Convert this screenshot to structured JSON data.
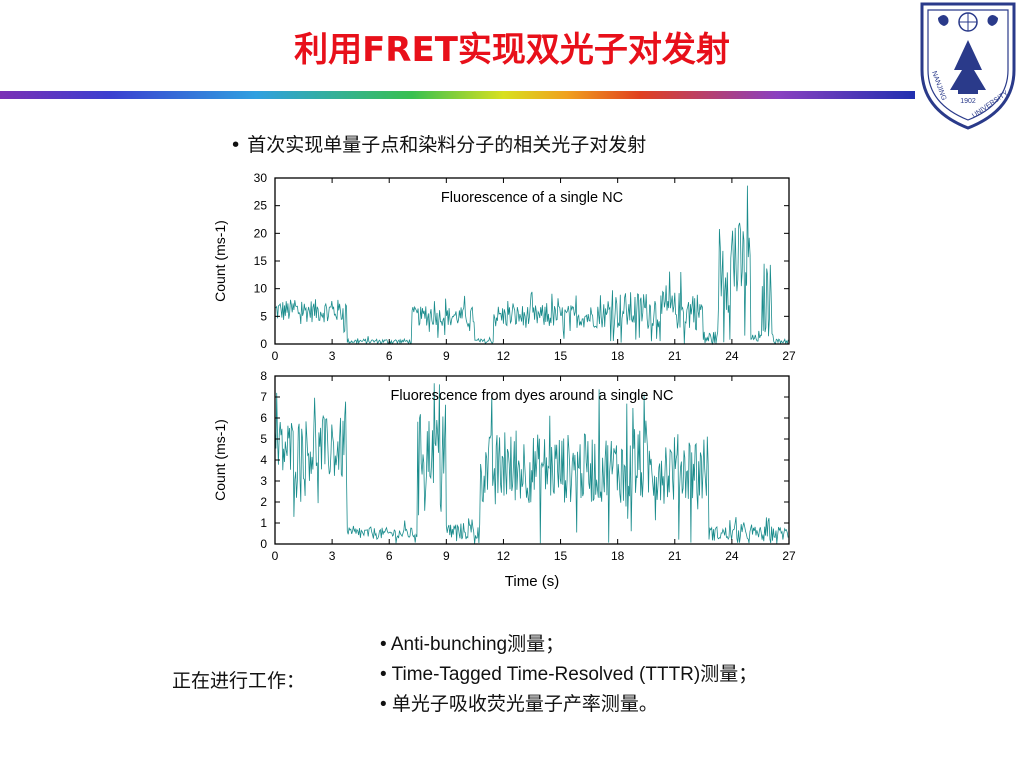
{
  "header": {
    "title": "利用FRET实现双光子对发射"
  },
  "logo": {
    "text_top": "NANJING",
    "text_bottom": "UNIVERSITY",
    "year": "1902"
  },
  "subtitle": "• 首次实现单量子点和染料分子的相关光子对发射",
  "chart_data": [
    {
      "type": "line",
      "title": "Fluorescence of a single NC",
      "ylabel": "Count (ms-1)",
      "xlabel": "",
      "xlim": [
        0,
        27
      ],
      "ylim": [
        0,
        30
      ],
      "xticks": [
        "0",
        "3",
        "6",
        "9",
        "12",
        "15",
        "18",
        "21",
        "24",
        "27"
      ],
      "yticks": [
        "0",
        "5",
        "10",
        "15",
        "20",
        "25",
        "30"
      ],
      "color": "#1a8c8c",
      "segments": [
        {
          "x": [
            0,
            3.8
          ],
          "level": 6,
          "noise": 3
        },
        {
          "x": [
            3.8,
            7.2
          ],
          "level": 0.5,
          "noise": 0.6
        },
        {
          "x": [
            7.2,
            10.5
          ],
          "level": 5,
          "noise": 2.5
        },
        {
          "x": [
            10.5,
            11.5
          ],
          "level": 0.5,
          "noise": 0.6
        },
        {
          "x": [
            11.5,
            17.5
          ],
          "level": 5,
          "noise": 3
        },
        {
          "x": [
            17.5,
            22.5
          ],
          "level": 6,
          "noise": 5
        },
        {
          "x": [
            22.5,
            23.3
          ],
          "level": 1,
          "noise": 2
        },
        {
          "x": [
            23.3,
            25.0
          ],
          "level": 14,
          "noise": 12
        },
        {
          "x": [
            25.0,
            25.6
          ],
          "level": 1,
          "noise": 1
        },
        {
          "x": [
            25.6,
            26.2
          ],
          "level": 8,
          "noise": 10
        },
        {
          "x": [
            26.2,
            27
          ],
          "level": 0.5,
          "noise": 0.6
        }
      ]
    },
    {
      "type": "line",
      "title": "Fluorescence from dyes around a single NC",
      "ylabel": "Count (ms-1)",
      "xlabel": "Time (s)",
      "xlim": [
        0,
        27
      ],
      "ylim": [
        0,
        8
      ],
      "xticks": [
        "0",
        "3",
        "6",
        "9",
        "12",
        "15",
        "18",
        "21",
        "24",
        "27"
      ],
      "yticks": [
        "0",
        "1",
        "2",
        "3",
        "4",
        "5",
        "6",
        "7",
        "8"
      ],
      "color": "#1a8c8c",
      "segments": [
        {
          "x": [
            0,
            3.8
          ],
          "level": 4.5,
          "noise": 2.2
        },
        {
          "x": [
            3.8,
            7.5
          ],
          "level": 0.5,
          "noise": 0.4
        },
        {
          "x": [
            7.5,
            9.0
          ],
          "level": 4.5,
          "noise": 2.5
        },
        {
          "x": [
            9.0,
            10.8
          ],
          "level": 0.6,
          "noise": 0.6
        },
        {
          "x": [
            10.8,
            22.8
          ],
          "level": 3.6,
          "noise": 2.4
        },
        {
          "x": [
            22.8,
            27
          ],
          "level": 0.5,
          "noise": 0.5
        }
      ]
    }
  ],
  "bottom": {
    "label": "正在进行工作：",
    "bullets": [
      "• Anti-bunching测量；",
      "• Time-Tagged Time-Resolved (TTTR)测量；",
      "• 单光子吸收荧光量子产率测量。"
    ]
  }
}
